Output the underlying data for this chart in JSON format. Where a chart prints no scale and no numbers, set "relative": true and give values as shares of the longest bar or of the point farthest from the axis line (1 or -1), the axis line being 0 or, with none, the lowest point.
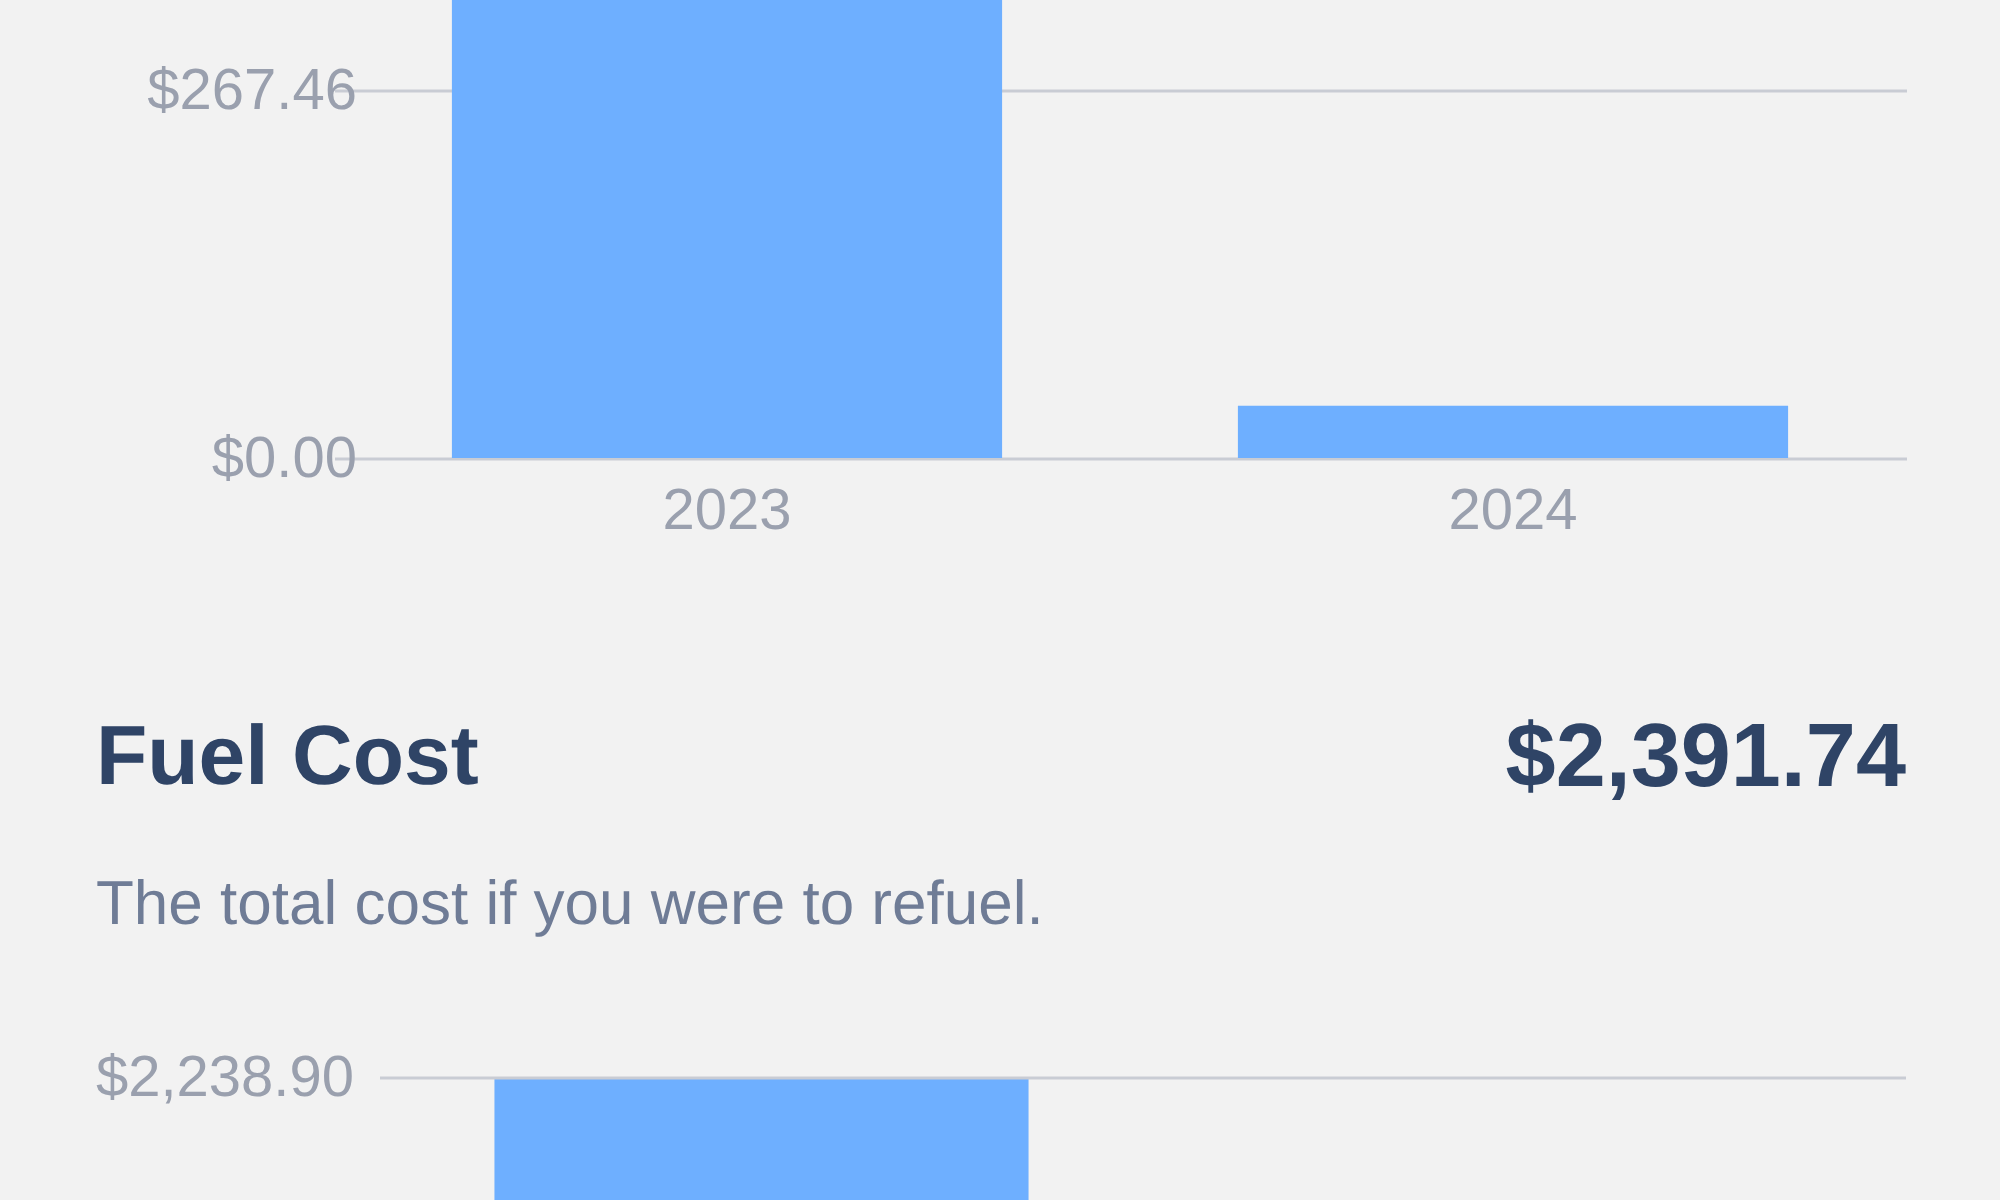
{
  "chart_data": [
    {
      "type": "bar",
      "categories": [
        "2023",
        "2024"
      ],
      "values": [
        333,
        38
      ],
      "color": "#6eafff",
      "ylim": [
        0,
        333
      ],
      "yticks": [
        {
          "value": 0,
          "label": "$0.00"
        },
        {
          "value": 267.46,
          "label": "$267.46"
        }
      ],
      "grid": "y"
    },
    {
      "type": "bar",
      "title": "Fuel Cost",
      "subtitle": "The total cost if you were to refuel.",
      "annotations": [
        "$2,391.74",
        "$2,238.90"
      ],
      "categories": [
        null,
        null
      ],
      "values": [
        1,
        null
      ],
      "color": "#6eafff",
      "relative": true,
      "ref_lines": [
        {
          "axis": "y",
          "value": 1,
          "color": "#c9ccd4"
        }
      ]
    }
  ]
}
